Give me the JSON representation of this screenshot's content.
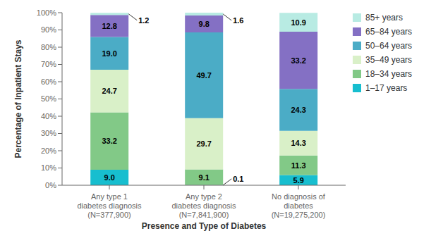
{
  "chart_data": {
    "type": "bar",
    "stacked": true,
    "data_labels": true,
    "grid": false,
    "legend": "right",
    "xlabel": "Presence and Type of Diabetes",
    "ylabel": "Percentage of Inpatient Stays",
    "categories": [
      "Any type 1\ndiabetes diagnosis\n(N=377,900)",
      "Any type 2\ndiabetes diagnosis\n(N=7,841,900)",
      "No diagnosis of\ndiabetes\n(N=19,275,200)"
    ],
    "series": [
      {
        "name": "1–17 years",
        "color": "#17becf",
        "values": [
          9.0,
          0.1,
          5.9
        ],
        "value_labels": [
          "9.0",
          "0.1",
          "5.9"
        ]
      },
      {
        "name": "18–34 years",
        "color": "#82c987",
        "values": [
          33.2,
          9.1,
          11.3
        ]
      },
      {
        "name": "35–49 years",
        "color": "#d9f0c8",
        "values": [
          24.7,
          29.7,
          14.3
        ]
      },
      {
        "name": "50–64 years",
        "color": "#4bacc6",
        "values": [
          19.0,
          49.7,
          24.3
        ],
        "value_labels": [
          "19.0",
          "49.7",
          "24.3"
        ]
      },
      {
        "name": "65–84 years",
        "color": "#8470c4",
        "values": [
          12.8,
          9.8,
          33.2
        ]
      },
      {
        "name": "85+ years",
        "color": "#b8ebe3",
        "values": [
          1.2,
          1.6,
          10.9
        ]
      }
    ],
    "ylim": [
      0,
      100
    ],
    "yticks": [
      {
        "value": 0,
        "label": "0%"
      },
      {
        "value": 10,
        "label": "10%"
      },
      {
        "value": 20,
        "label": "20%"
      },
      {
        "value": 30,
        "label": "30%"
      },
      {
        "value": 40,
        "label": "40%"
      },
      {
        "value": 50,
        "label": "50%"
      },
      {
        "value": 60,
        "label": "60%"
      },
      {
        "value": 70,
        "label": "70%"
      },
      {
        "value": 80,
        "label": "80%"
      },
      {
        "value": 90,
        "label": "90%"
      },
      {
        "value": 100,
        "label": "100%"
      }
    ]
  }
}
